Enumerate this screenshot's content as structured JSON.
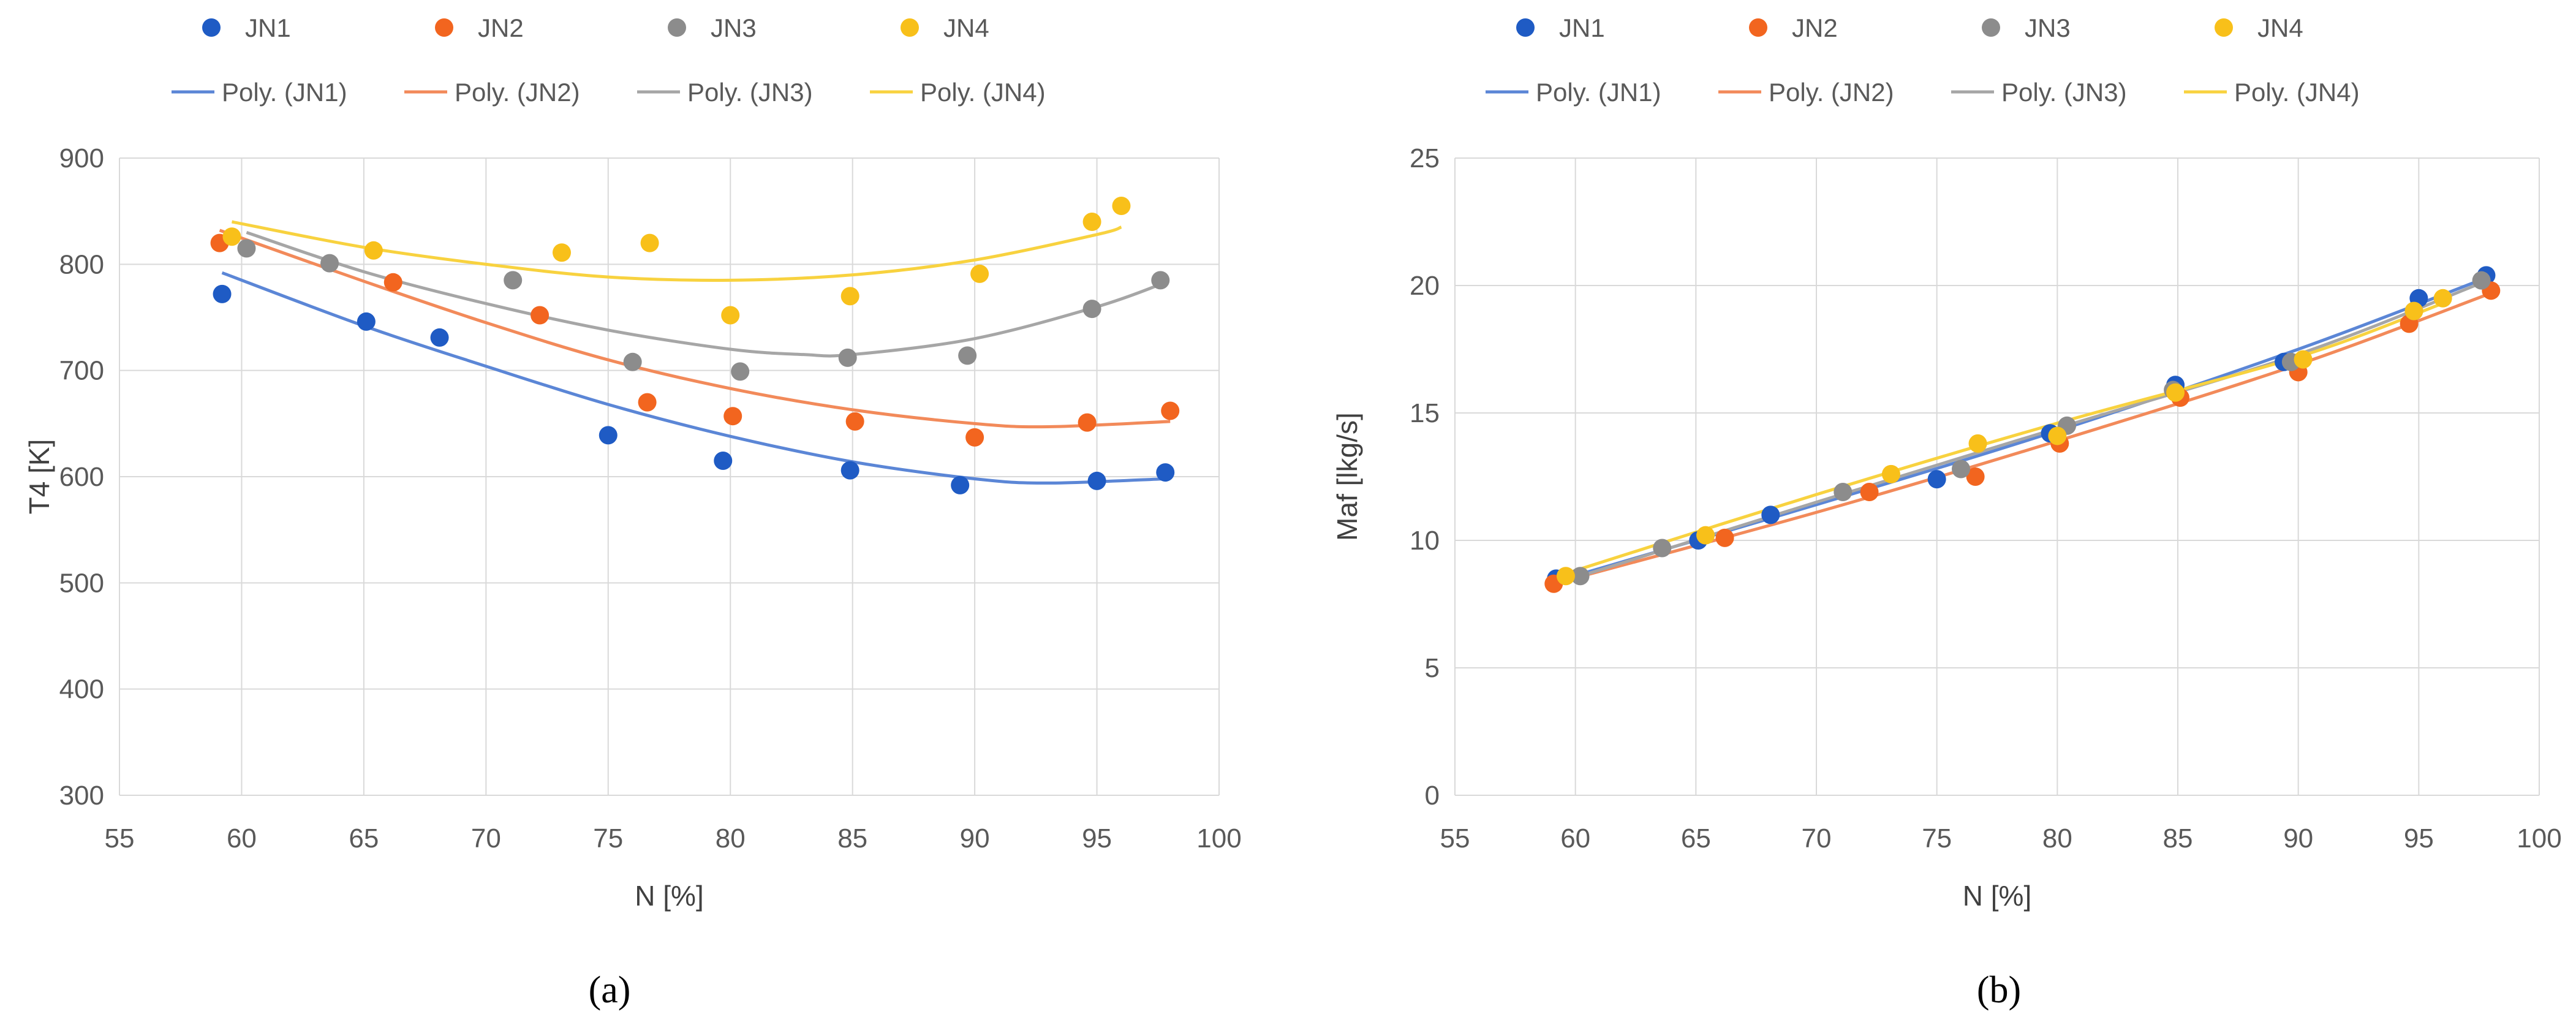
{
  "colors": {
    "JN1": "#1f5bc4",
    "JN2": "#f2651f",
    "JN3": "#8c8c8c",
    "JN4": "#f8c01a",
    "fit_JN1": "#5b86d6",
    "fit_JN2": "#f28a5a",
    "fit_JN3": "#a6a6a6",
    "fit_JN4": "#f8d23f",
    "grid": "#d9d9d9"
  },
  "chart_data": [
    {
      "panel": "a",
      "caption": "(a)",
      "type": "scatter",
      "xlabel": "N [%]",
      "ylabel": "T4 [K]",
      "xlim": [
        55,
        100
      ],
      "ylim": [
        300,
        900
      ],
      "xticks": [
        "55",
        "60",
        "65",
        "70",
        "75",
        "80",
        "85",
        "90",
        "95",
        "100"
      ],
      "yticks": [
        "300",
        "400",
        "500",
        "600",
        "700",
        "800",
        "900"
      ],
      "legend": {
        "markers": [
          "JN1",
          "JN2",
          "JN3",
          "JN4"
        ],
        "lines": [
          "Poly. (JN1)",
          "Poly. (JN2)",
          "Poly. (JN3)",
          "Poly. (JN4)"
        ]
      },
      "series": [
        {
          "name": "JN1",
          "x": [
            59.2,
            65.1,
            68.1,
            75.0,
            79.7,
            84.9,
            89.4,
            95.0,
            97.8
          ],
          "y": [
            772,
            746,
            731,
            639,
            615,
            606,
            592,
            596,
            604
          ]
        },
        {
          "name": "JN2",
          "x": [
            59.1,
            66.2,
            72.2,
            76.6,
            80.1,
            85.1,
            90.0,
            94.6,
            98.0
          ],
          "y": [
            820,
            783,
            752,
            670,
            657,
            652,
            637,
            651,
            662
          ]
        },
        {
          "name": "JN3",
          "x": [
            60.2,
            63.6,
            71.1,
            76.0,
            80.4,
            84.8,
            89.7,
            94.8,
            97.6
          ],
          "y": [
            815,
            801,
            785,
            708,
            699,
            712,
            714,
            758,
            785
          ]
        },
        {
          "name": "JN4",
          "x": [
            59.6,
            65.4,
            73.1,
            76.7,
            80.0,
            84.9,
            90.2,
            94.8,
            96.0
          ],
          "y": [
            826,
            813,
            811,
            820,
            752,
            770,
            791,
            840,
            855
          ]
        }
      ],
      "fits": [
        {
          "name": "Poly. (JN1)",
          "x": [
            59.2,
            65,
            70,
            75,
            80,
            85,
            90,
            93,
            97.8
          ],
          "y": [
            792,
            742,
            704,
            668,
            638,
            614,
            598,
            594,
            598
          ]
        },
        {
          "name": "Poly. (JN2)",
          "x": [
            59.1,
            65,
            70,
            75,
            80,
            85,
            90,
            93,
            98
          ],
          "y": [
            832,
            784,
            745,
            710,
            683,
            663,
            650,
            647,
            652
          ]
        },
        {
          "name": "Poly. (JN3)",
          "x": [
            60.2,
            65,
            70,
            75,
            80,
            83,
            85,
            90,
            95,
            97.6
          ],
          "y": [
            830,
            793,
            763,
            738,
            720,
            715,
            715,
            730,
            760,
            781
          ]
        },
        {
          "name": "Poly. (JN4)",
          "x": [
            59.6,
            65,
            70,
            75,
            80,
            85,
            90,
            95,
            96
          ],
          "y": [
            840,
            816,
            800,
            788,
            785,
            790,
            804,
            828,
            835
          ]
        }
      ]
    },
    {
      "panel": "b",
      "caption": "(b)",
      "type": "scatter",
      "xlabel": "N [%]",
      "ylabel": "Maf [lkg/s]",
      "xlim": [
        55,
        100
      ],
      "ylim": [
        0,
        25
      ],
      "xticks": [
        "55",
        "60",
        "65",
        "70",
        "75",
        "80",
        "85",
        "90",
        "95",
        "100"
      ],
      "yticks": [
        "0",
        "5",
        "10",
        "15",
        "20",
        "25"
      ],
      "legend": {
        "markers": [
          "JN1",
          "JN2",
          "JN3",
          "JN4"
        ],
        "lines": [
          "Poly. (JN1)",
          "Poly. (JN2)",
          "Poly. (JN3)",
          "Poly. (JN4)"
        ]
      },
      "series": [
        {
          "name": "JN1",
          "x": [
            59.2,
            65.1,
            68.1,
            75.0,
            79.7,
            84.9,
            89.4,
            95.0,
            97.8
          ],
          "y": [
            8.5,
            10.0,
            11.0,
            12.4,
            14.2,
            16.1,
            17.0,
            19.5,
            20.4
          ]
        },
        {
          "name": "JN2",
          "x": [
            59.1,
            66.2,
            72.2,
            76.6,
            80.1,
            85.1,
            90.0,
            94.6,
            98.0
          ],
          "y": [
            8.3,
            10.1,
            11.9,
            12.5,
            13.8,
            15.6,
            16.6,
            18.5,
            19.8
          ]
        },
        {
          "name": "JN3",
          "x": [
            60.2,
            63.6,
            71.1,
            76.0,
            80.4,
            84.8,
            89.7,
            94.8,
            97.6
          ],
          "y": [
            8.6,
            9.7,
            11.9,
            12.8,
            14.5,
            15.9,
            17.0,
            19.0,
            20.2
          ]
        },
        {
          "name": "JN4",
          "x": [
            59.6,
            65.4,
            73.1,
            76.7,
            80.0,
            84.9,
            90.2,
            94.8,
            96.0
          ],
          "y": [
            8.6,
            10.2,
            12.6,
            13.8,
            14.1,
            15.8,
            17.1,
            19.0,
            19.5
          ]
        }
      ],
      "fits": [
        {
          "name": "Poly. (JN1)",
          "x": [
            59.2,
            70,
            80,
            90,
            97.8
          ],
          "y": [
            8.4,
            11.4,
            14.3,
            17.5,
            20.3
          ]
        },
        {
          "name": "Poly. (JN2)",
          "x": [
            59.1,
            70,
            80,
            90,
            98.0
          ],
          "y": [
            8.3,
            11.1,
            13.9,
            16.9,
            19.7
          ]
        },
        {
          "name": "Poly. (JN3)",
          "x": [
            60.2,
            70,
            80,
            90,
            97.6
          ],
          "y": [
            8.6,
            11.5,
            14.4,
            17.3,
            20.1
          ]
        },
        {
          "name": "Poly. (JN4)",
          "x": [
            59.6,
            70,
            80,
            90,
            96.0
          ],
          "y": [
            8.7,
            11.8,
            14.6,
            17.2,
            19.3
          ]
        }
      ]
    }
  ]
}
